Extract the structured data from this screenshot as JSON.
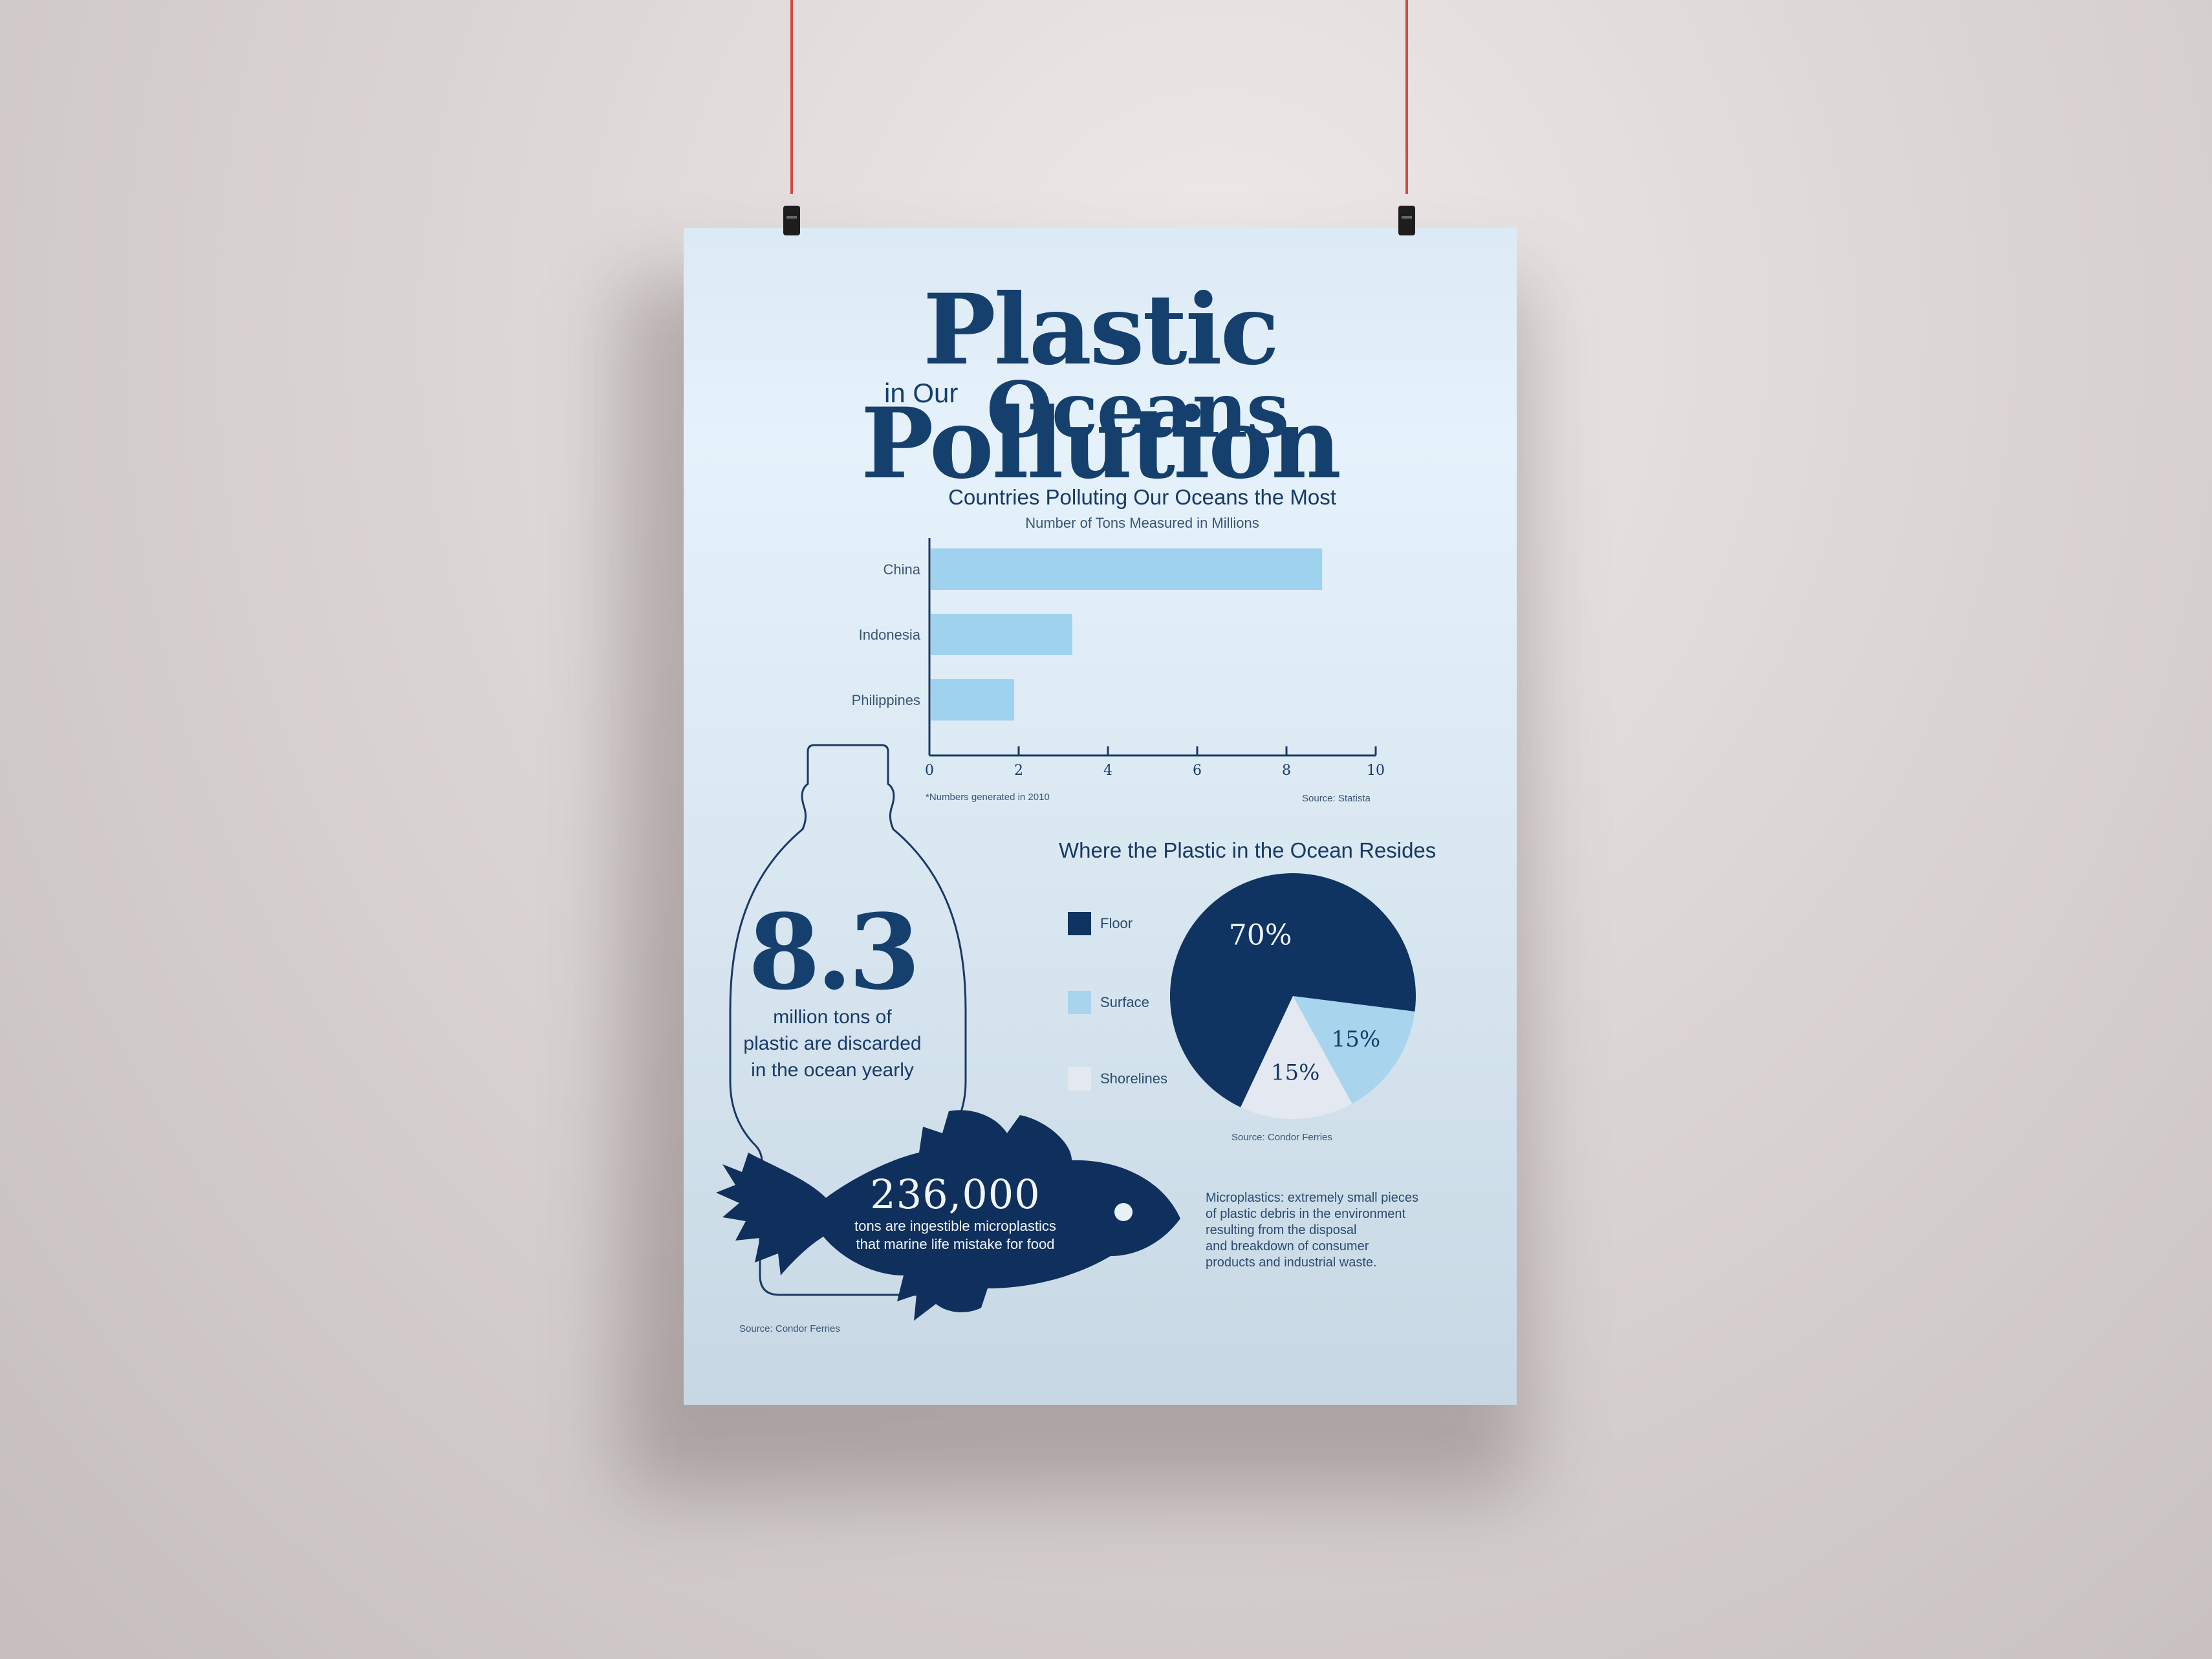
{
  "poster": {
    "title_main": "Plastic Pollution",
    "title_in_our": "in Our",
    "title_oceans": "Oceans"
  },
  "bar_chart": {
    "title": "Countries Polluting Our Oceans the Most",
    "subtitle": "Number of Tons Measured in Millions",
    "footnote": "*Numbers generated in 2010",
    "source": "Source: Statista"
  },
  "pie_chart": {
    "title": "Where the Plastic in the Ocean Resides",
    "source": "Source: Condor Ferries",
    "legend": [
      {
        "label": "Floor",
        "color": "#0f3461"
      },
      {
        "label": "Surface",
        "color": "#a8d4ee"
      },
      {
        "label": "Shorelines",
        "color": "#e4e9f1"
      }
    ]
  },
  "stat_bottle": {
    "number": "8.3",
    "line1": "million tons of",
    "line2": "plastic are discarded",
    "line3": "in the ocean yearly"
  },
  "stat_fish": {
    "number": "236,000",
    "line1": "tons are ingestible microplastics",
    "line2": "that marine life mistake for food",
    "source": "Source: Condor Ferries"
  },
  "microplastics": {
    "line1": "Microplastics: extremely small pieces",
    "line2": "of plastic debris in the environment",
    "line3": "resulting from the disposal",
    "line4": "and breakdown of consumer",
    "line5": "products and industrial waste."
  },
  "chart_data": [
    {
      "type": "bar",
      "orientation": "horizontal",
      "title": "Countries Polluting Our Oceans the Most",
      "subtitle": "Number of Tons Measured in Millions",
      "categories": [
        "China",
        "Indonesia",
        "Philippines"
      ],
      "values": [
        8.8,
        3.2,
        1.9
      ],
      "xlim": [
        0,
        10
      ],
      "xticks": [
        "0",
        "2",
        "4",
        "6",
        "8",
        "10"
      ],
      "grid": false,
      "color": "#9fd2ef"
    },
    {
      "type": "pie",
      "title": "Where the Plastic in the Ocean Resides",
      "labels": [
        "Floor",
        "Surface",
        "Shorelines"
      ],
      "values": [
        70,
        15,
        15
      ],
      "value_labels": [
        "70%",
        "15%",
        "15%"
      ],
      "legend": "left",
      "colors": [
        "#0f3461",
        "#a8d4ee",
        "#e4e9f1"
      ]
    }
  ]
}
